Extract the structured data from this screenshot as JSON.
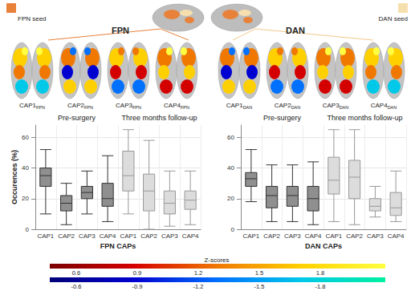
{
  "figure": {
    "seed_legend": [
      {
        "label": "FPN seed",
        "color": "#e8823a"
      },
      {
        "label": "DAN seed",
        "color": "#f6dfae"
      }
    ],
    "networks": [
      {
        "label": "FPN",
        "maps": [
          {
            "text": "CAP1",
            "subscript": "FPN"
          },
          {
            "text": "CAP2",
            "subscript": "FPN"
          },
          {
            "text": "CAP3",
            "subscript": "FPN"
          },
          {
            "text": "CAP4",
            "subscript": "FPN"
          }
        ]
      },
      {
        "label": "DAN",
        "maps": [
          {
            "text": "CAP1",
            "subscript": "DAN"
          },
          {
            "text": "CAP2",
            "subscript": "DAN"
          },
          {
            "text": "CAP3",
            "subscript": "DAN"
          },
          {
            "text": "CAP4",
            "subscript": "DAN"
          }
        ]
      }
    ]
  },
  "chart_data": [
    {
      "type": "boxplot",
      "x_label": "FPN CAPs",
      "y_label": "Occurences (%)",
      "categories": [
        "CAP1",
        "CAP2",
        "CAP3",
        "CAP4",
        "CAP1",
        "CAP2",
        "CAP3",
        "CAP4"
      ],
      "series": [
        {
          "name": "Pre-surgery",
          "color": "#8f8f8f",
          "values": [
            [
              10,
              28,
              35,
              40,
              52
            ],
            [
              3,
              12,
              17,
              22,
              30
            ],
            [
              10,
              20,
              24,
              28,
              38
            ],
            [
              5,
              15,
              20,
              30,
              48
            ],
            null,
            null,
            null,
            null
          ]
        },
        {
          "name": "Three months follow-up",
          "color": "#dcdcdc",
          "values": [
            null,
            null,
            null,
            null,
            [
              10,
              25,
              35,
              51,
              65
            ],
            [
              0,
              12,
              25,
              36,
              58
            ],
            [
              2,
              10,
              17,
              25,
              38
            ],
            [
              3,
              13,
              19,
              25,
              38
            ]
          ]
        }
      ],
      "ylim": [
        0,
        68
      ],
      "yticks": [
        0,
        20,
        40,
        60
      ],
      "grid": true
    },
    {
      "type": "boxplot",
      "x_label": "DAN CAPs",
      "categories": [
        "CAP1",
        "CAP2",
        "CAP3",
        "CAP4",
        "CAP1",
        "CAP2",
        "CAP3",
        "CAP4"
      ],
      "series": [
        {
          "name": "Pre-surgery",
          "color": "#8f8f8f",
          "values": [
            [
              18,
              28,
              33,
              37,
              52
            ],
            [
              5,
              14,
              22,
              28,
              42
            ],
            [
              5,
              15,
              22,
              28,
              42
            ],
            [
              3,
              12,
              20,
              28,
              44
            ],
            null,
            null,
            null,
            null
          ]
        },
        {
          "name": "Three months follow-up",
          "color": "#dcdcdc",
          "values": [
            null,
            null,
            null,
            null,
            [
              5,
              23,
              32,
              47,
              65
            ],
            [
              3,
              20,
              34,
              45,
              65
            ],
            [
              8,
              12,
              15,
              20,
              28
            ],
            [
              5,
              9,
              14,
              24,
              38
            ]
          ]
        }
      ],
      "ylim": [
        0,
        68
      ],
      "yticks": [
        0,
        20,
        40,
        60
      ],
      "grid": true
    }
  ],
  "colorbar": {
    "title": "Z-scores",
    "scales": [
      {
        "range": [
          0.47,
          2.12
        ],
        "ticks": [
          0.6,
          0.9,
          1.2,
          1.5,
          1.8
        ],
        "colors": [
          "#7a0000",
          "#d40000",
          "#f07800",
          "#ffd000",
          "#ffff40"
        ]
      },
      {
        "range": [
          -0.47,
          -2.12
        ],
        "ticks": [
          -0.6,
          -0.9,
          -1.2,
          -1.5,
          -1.8
        ],
        "colors": [
          "#000078",
          "#0000d0",
          "#0070ff",
          "#00c8e8",
          "#00f0a0"
        ]
      }
    ]
  }
}
